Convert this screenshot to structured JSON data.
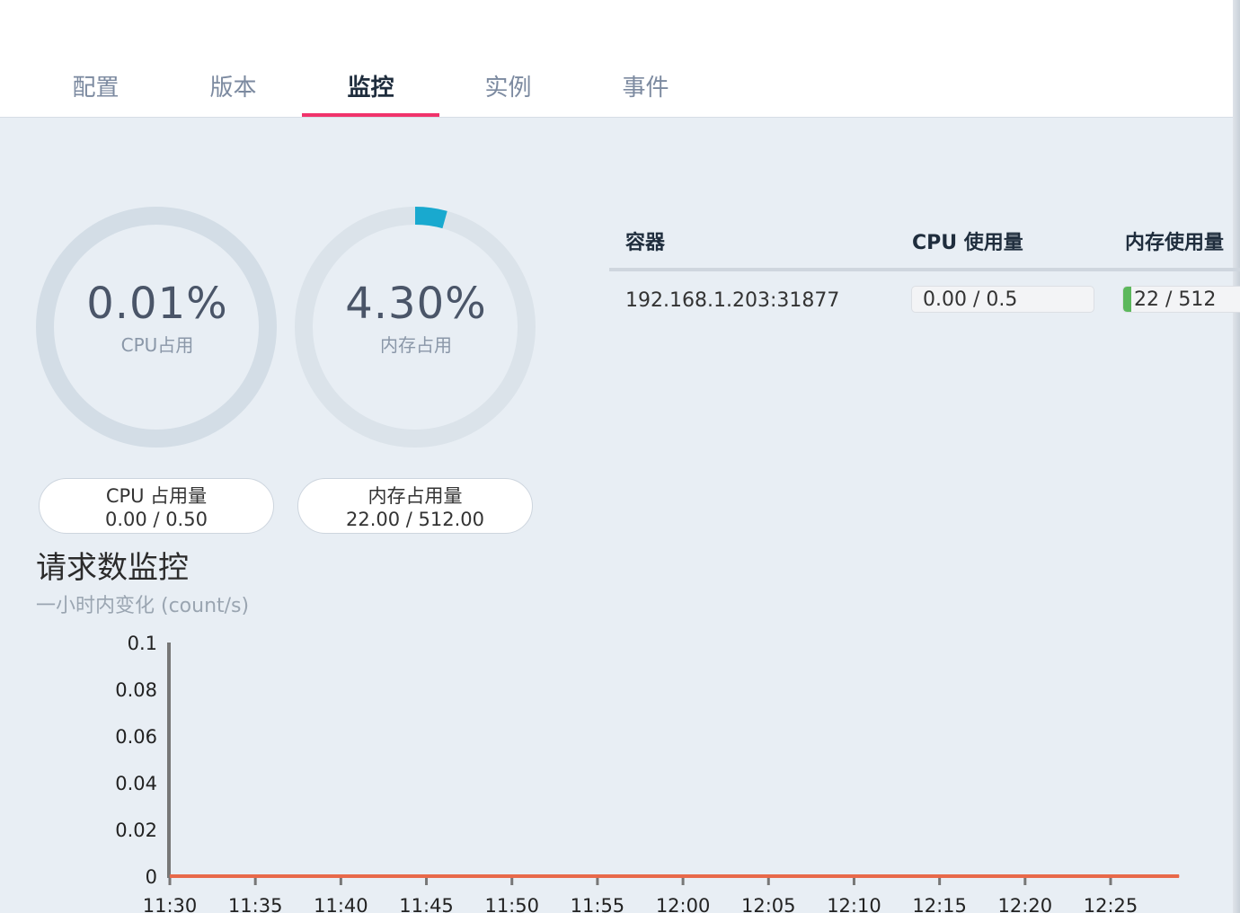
{
  "tabs": [
    {
      "label": "配置",
      "active": false
    },
    {
      "label": "版本",
      "active": false
    },
    {
      "label": "监控",
      "active": true
    },
    {
      "label": "实例",
      "active": false
    },
    {
      "label": "事件",
      "active": false
    }
  ],
  "gauges": {
    "cpu": {
      "value": "0.01%",
      "label": "CPU占用",
      "fraction": 0.0001,
      "ring_color": "#d3dde6",
      "arc_color": "#19a9cf"
    },
    "memory": {
      "value": "4.30%",
      "label": "内存占用",
      "fraction": 0.043,
      "ring_color": "#dbe3ea",
      "arc_color": "#19a9cf"
    }
  },
  "usage_pills": {
    "cpu": {
      "title": "CPU 占用量",
      "value": "0.00 / 0.50"
    },
    "memory": {
      "title": "内存占用量",
      "value": "22.00 / 512.00"
    }
  },
  "container_table": {
    "headers": {
      "container": "容器",
      "cpu": "CPU 使用量",
      "memory": "内存使用量"
    },
    "rows": [
      {
        "container": "192.168.1.203:31877",
        "cpu": "0.00 / 0.5",
        "cpu_fraction": 0.0,
        "memory": "22 / 512",
        "memory_fraction": 0.043
      }
    ]
  },
  "request_monitor": {
    "title": "请求数监控",
    "subtitle": "一小时内变化 (count/s)"
  },
  "chart_data": {
    "type": "line",
    "title": "",
    "xlabel": "",
    "ylabel": "",
    "x": [
      "11:30",
      "11:35",
      "11:40",
      "11:45",
      "11:50",
      "11:55",
      "12:00",
      "12:05",
      "12:10",
      "12:15",
      "12:20",
      "12:25",
      "12:29"
    ],
    "y_ticks": [
      "0",
      "0.02",
      "0.04",
      "0.06",
      "0.08",
      "0.1"
    ],
    "x_ticks": [
      "11:30",
      "11:35",
      "11:40",
      "11:45",
      "11:50",
      "11:55",
      "12:00",
      "12:05",
      "12:10",
      "12:15",
      "12:20",
      "12:25"
    ],
    "ylim": [
      0,
      0.1
    ],
    "series": [
      {
        "values": [
          0,
          0,
          0,
          0,
          0,
          0,
          0,
          0,
          0,
          0,
          0,
          0,
          0
        ],
        "color": "#e8694a"
      }
    ],
    "grid": false
  }
}
